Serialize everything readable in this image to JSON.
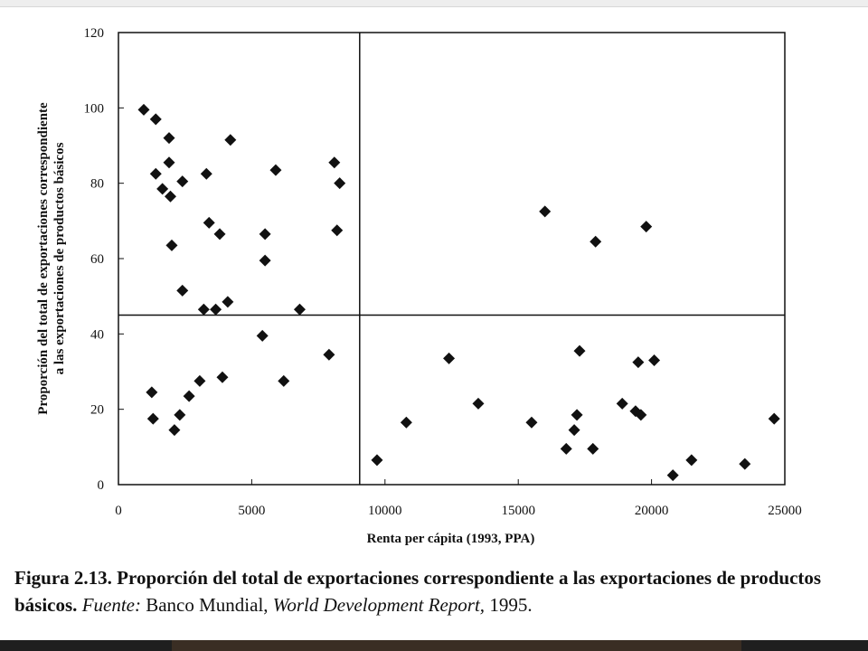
{
  "caption": {
    "figure_label": "Figura 2.13.",
    "title": "Proporción del total de exportaciones correspondiente a las exportaciones de productos básicos.",
    "source_label": "Fuente:",
    "source_org": "Banco Mundial,",
    "source_report": "World Development Report,",
    "source_year": "1995."
  },
  "chart_data": {
    "type": "scatter",
    "xlabel": "Renta per cápita (1993, PPA)",
    "ylabel_line1": "Proporción del total de exportaciones correspondiente",
    "ylabel_line2": "a las exportaciones de productos básicos",
    "xlim": [
      0,
      25000
    ],
    "ylim": [
      0,
      120
    ],
    "xticks": [
      0,
      5000,
      10000,
      15000,
      20000,
      25000
    ],
    "yticks": [
      0,
      20,
      40,
      60,
      80,
      100,
      120
    ],
    "reference_lines": {
      "x": 9050,
      "y": 45
    },
    "marker": "diamond",
    "marker_color": "#111111",
    "points": [
      [
        950,
        99.5
      ],
      [
        1400,
        97
      ],
      [
        1900,
        92
      ],
      [
        4200,
        91.5
      ],
      [
        1900,
        85.5
      ],
      [
        1400,
        82.5
      ],
      [
        3300,
        82.5
      ],
      [
        5900,
        83.5
      ],
      [
        8100,
        85.5
      ],
      [
        8300,
        80
      ],
      [
        2400,
        80.5
      ],
      [
        1650,
        78.5
      ],
      [
        1950,
        76.5
      ],
      [
        3400,
        69.5
      ],
      [
        3800,
        66.5
      ],
      [
        5500,
        66.5
      ],
      [
        8200,
        67.5
      ],
      [
        2000,
        63.5
      ],
      [
        5500,
        59.5
      ],
      [
        2400,
        51.5
      ],
      [
        4100,
        48.5
      ],
      [
        3200,
        46.5
      ],
      [
        3650,
        46.5
      ],
      [
        6800,
        46.5
      ],
      [
        5400,
        39.5
      ],
      [
        7900,
        34.5
      ],
      [
        3900,
        28.5
      ],
      [
        3050,
        27.5
      ],
      [
        6200,
        27.5
      ],
      [
        2650,
        23.5
      ],
      [
        1250,
        24.5
      ],
      [
        1300,
        17.5
      ],
      [
        2300,
        18.5
      ],
      [
        2100,
        14.5
      ],
      [
        9700,
        6.5
      ],
      [
        10800,
        16.5
      ],
      [
        12400,
        33.5
      ],
      [
        13500,
        21.5
      ],
      [
        16000,
        72.5
      ],
      [
        17900,
        64.5
      ],
      [
        19800,
        68.5
      ],
      [
        15500,
        16.5
      ],
      [
        16800,
        9.5
      ],
      [
        17100,
        14.5
      ],
      [
        17200,
        18.5
      ],
      [
        17300,
        35.5
      ],
      [
        17800,
        9.5
      ],
      [
        18900,
        21.5
      ],
      [
        19400,
        19.5
      ],
      [
        19600,
        18.5
      ],
      [
        19500,
        32.5
      ],
      [
        20100,
        33
      ],
      [
        20800,
        2.5
      ],
      [
        21500,
        6.5
      ],
      [
        23500,
        5.5
      ],
      [
        24600,
        17.5
      ]
    ]
  }
}
